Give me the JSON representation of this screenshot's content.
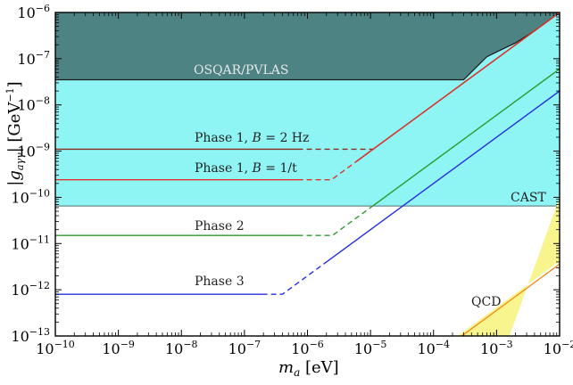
{
  "chart_data": {
    "type": "line",
    "xlabel": "m_a [eV]",
    "ylabel": "|g_aγγ| [GeV⁻¹]",
    "xscale": "log",
    "yscale": "log",
    "xlim": [
      1e-10,
      0.01
    ],
    "ylim": [
      1e-13,
      1e-06
    ],
    "x_ticks": [
      {
        "exp": "−10",
        "value": 1e-10
      },
      {
        "exp": "−9",
        "value": 1e-09
      },
      {
        "exp": "−8",
        "value": 1e-08
      },
      {
        "exp": "−7",
        "value": 1e-07
      },
      {
        "exp": "−6",
        "value": 1e-06
      },
      {
        "exp": "−5",
        "value": 1e-05
      },
      {
        "exp": "−4",
        "value": 0.0001
      },
      {
        "exp": "−3",
        "value": 0.001
      },
      {
        "exp": "−2",
        "value": 0.01
      }
    ],
    "y_ticks": [
      {
        "exp": "−13",
        "value": 1e-13
      },
      {
        "exp": "−12",
        "value": 1e-12
      },
      {
        "exp": "−11",
        "value": 1e-11
      },
      {
        "exp": "−10",
        "value": 1e-10
      },
      {
        "exp": "−9",
        "value": 1e-09
      },
      {
        "exp": "−8",
        "value": 1e-08
      },
      {
        "exp": "−7",
        "value": 1e-07
      },
      {
        "exp": "−6",
        "value": 1e-06
      }
    ],
    "regions": [
      {
        "label": "OSQAR/PVLAS",
        "color": "#4d8383",
        "edge_color": "#1a1a1a",
        "boundary": [
          [
            1e-10,
            3.5e-08
          ],
          [
            0.0003,
            3.5e-08
          ],
          [
            0.0005,
            7e-08
          ],
          [
            0.0007,
            1.1e-07
          ],
          [
            0.001,
            1.4e-07
          ],
          [
            0.002,
            2.2e-07
          ],
          [
            0.004,
            4e-07
          ],
          [
            0.007,
            7e-07
          ],
          [
            0.01,
            1e-06
          ]
        ]
      },
      {
        "label": "CAST",
        "color": "#8ff4f4",
        "edge_color": "#4f6f6f",
        "y": 6.5e-11
      },
      {
        "label": "QCD",
        "color": "#f8f48e",
        "band": [
          [
            0.00024,
            1e-13
          ],
          [
            0.01,
            4.2e-12
          ],
          [
            0.01,
            1e-10
          ],
          [
            0.0016,
            1e-13
          ]
        ],
        "line": {
          "color": "#f08a1c",
          "points": [
            [
              0.00028,
              1e-13
            ],
            [
              0.01,
              3.6e-12
            ]
          ]
        }
      }
    ],
    "series": [
      {
        "name": "Phase 1, B = 2 Hz",
        "color": "#8b2c22",
        "flat_y": 1.1e-09,
        "flat_end": 7e-07,
        "dash_end": 6e-06,
        "slope_end": [
          0.01,
          1e-06
        ]
      },
      {
        "name": "Phase 1, B = 1/t",
        "color": "#e0342a",
        "flat_y": 2.4e-10,
        "flat_end": 7e-07,
        "dash_end": 6e-06,
        "slope_end": [
          0.01,
          1e-06
        ]
      },
      {
        "name": "Phase 2",
        "color": "#2e9a2e",
        "flat_y": 1.5e-11,
        "flat_end": 7e-07,
        "dash_end": 1.1e-05,
        "slope_end": [
          0.01,
          6e-08
        ]
      },
      {
        "name": "Phase 3",
        "color": "#2330e0",
        "flat_y": 8e-13,
        "flat_end": 1.9e-07,
        "dash_end": 1.8e-06,
        "slope_end": [
          0.01,
          2e-08
        ]
      }
    ],
    "labels": {
      "osqar": "OSQAR/PVLAS",
      "cast": "CAST",
      "phase1a_pre": "Phase 1, ",
      "phase1a_var": "B",
      "phase1a_post": " = 2 Hz",
      "phase1b_pre": "Phase 1, ",
      "phase1b_var": "B",
      "phase1b_post": " = 1/t",
      "phase2": "Phase 2",
      "phase3": "Phase 3",
      "qcd": "QCD"
    }
  }
}
